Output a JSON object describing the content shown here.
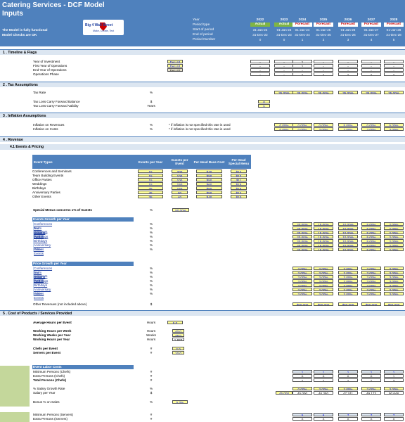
{
  "header": {
    "title": "Catering Services - DCF Model",
    "subtitle": "Inputs",
    "note1": "The Model is fully functional",
    "note2": "Model Checks are OK",
    "logo_text": "Big 4 Wall Street",
    "logo_sub": "Make, Create, Test",
    "period_labels": [
      "Year",
      "Period type",
      "Start of period",
      "End of period",
      "Period Number"
    ],
    "years": [
      "2022",
      "2023",
      "2024",
      "2025",
      "2026",
      "2027",
      "2028"
    ],
    "types": [
      "Actual",
      "Actual",
      "Forecast",
      "Forecast",
      "Forecast",
      "Forecast",
      "Forecast"
    ],
    "starts": [
      "31-Jan-22",
      "01-Jan-23",
      "01-Jan-24",
      "01-Jan-25",
      "01-Jan-26",
      "01-Jan-27",
      "01-Jan-28"
    ],
    "ends": [
      "31-Dec-22",
      "31-Dec-23",
      "31-Dec-24",
      "31-Dec-25",
      "31-Dec-26",
      "31-Dec-27",
      "31-Dec-28"
    ],
    "nums": [
      "0",
      "0",
      "1",
      "2",
      "3",
      "4",
      "5"
    ]
  },
  "sections": {
    "s1": "1 . Timeline & Flags",
    "s2": "2 . Tax Assumptions",
    "s3": "3 . Inflation Assumptions",
    "s4": "4 . Revenue",
    "s41": "4.1   Events & Pricing",
    "s5": "5 . Cost of Products / Services Provided"
  },
  "timeline": {
    "labels": [
      "Year of Investment",
      "First Year of Operations",
      "End Year of Operations",
      "Operations Phase"
    ],
    "values": [
      "Dec-24",
      "Dec-24",
      "Dec-37",
      ""
    ],
    "grid": [
      [
        "-",
        "-",
        "1",
        "-",
        "-",
        "-",
        "-"
      ],
      [
        "-",
        "-",
        "1",
        "-",
        "-",
        "-",
        "-"
      ],
      [
        "-",
        "-",
        "-",
        "-",
        "-",
        "-",
        "-"
      ],
      [
        "-",
        "-",
        "1",
        "1",
        "1",
        "1",
        "1"
      ]
    ]
  },
  "tax": {
    "rate_label": "Tax Rate",
    "rate_unit": "%",
    "rates": [
      "35.00%",
      "35.00%",
      "35.00%",
      "35.00%",
      "35.00%",
      "35.00%"
    ],
    "loss_label": "Tax Loss Carry Forward Balance",
    "loss_unit": "$",
    "loss_value": "0",
    "valid_label": "Tax Loss Carry Forward Validity",
    "valid_unit": "Years",
    "valid_value": "5"
  },
  "inflation": {
    "rev_label": "Inflation on Revenues",
    "cost_label": "Inflation on Costs",
    "unit": "%",
    "note": "* if inflation is not specified this rate is used",
    "rev": [
      "0.00%",
      "0.00%",
      "0.00%",
      "5.00%",
      "0.00%",
      "5.00%"
    ],
    "cost": [
      "0.00%",
      "0.00%",
      "3.00%",
      "3.00%",
      "3.00%",
      "3.00%"
    ]
  },
  "events": {
    "headers": [
      "Event Types",
      "Events per Year",
      "Guests per Event",
      "Per Head Base Cost",
      "Per Head Special Menu"
    ],
    "rows": [
      [
        "Conferences and Seminars",
        "15",
        "200",
        "$40",
        "$12"
      ],
      [
        "Team Building Events",
        "15",
        "100",
        "$50",
        "$13"
      ],
      [
        "Office Parties",
        "15",
        "100",
        "$50",
        "$11"
      ],
      [
        "Weddings",
        "15",
        "150",
        "$60",
        "$15"
      ],
      [
        "Birthdays",
        "25",
        "150",
        "$50",
        "$16"
      ],
      [
        "Anniversary Parties",
        "45",
        "60",
        "$50",
        "$12"
      ],
      [
        "Other Events",
        "35",
        "40",
        "$40",
        "$10"
      ]
    ],
    "special_label": "Special Menus concerns x% of Guests",
    "special_unit": "%",
    "special_value": "50.00%"
  },
  "growth": {
    "title": "Events Growth per Year",
    "unit": "%",
    "rows": [
      [
        "20.00%",
        "15.00%",
        "10.00%",
        "5.00%",
        "2.00%"
      ],
      [
        "20.00%",
        "15.00%",
        "10.00%",
        "5.00%",
        "2.00%"
      ],
      [
        "20.00%",
        "15.00%",
        "10.00%",
        "5.00%",
        "2.00%"
      ],
      [
        "20.00%",
        "15.00%",
        "10.00%",
        "5.00%",
        "2.00%"
      ],
      [
        "20.00%",
        "15.00%",
        "10.00%",
        "5.00%",
        "2.00%"
      ],
      [
        "20.00%",
        "15.00%",
        "10.00%",
        "5.00%",
        "2.00%"
      ],
      [
        "20.00%",
        "15.00%",
        "10.00%",
        "5.00%",
        "2.00%"
      ]
    ]
  },
  "price": {
    "title": "Price Growth per Year",
    "unit": "%",
    "rows": [
      [
        "3.00%",
        "3.00%",
        "3.00%",
        "3.00%",
        "3.00%"
      ],
      [
        "3.00%",
        "3.00%",
        "3.00%",
        "3.00%",
        "3.00%"
      ],
      [
        "3.00%",
        "3.00%",
        "3.00%",
        "3.00%",
        "3.00%"
      ],
      [
        "3.00%",
        "3.00%",
        "3.00%",
        "3.00%",
        "3.00%"
      ],
      [
        "3.00%",
        "3.00%",
        "3.00%",
        "3.00%",
        "3.00%"
      ],
      [
        "3.00%",
        "3.00%",
        "3.00%",
        "3.00%",
        "3.00%"
      ],
      [
        "3.00%",
        "3.00%",
        "3.00%",
        "3.00%",
        "3.00%"
      ]
    ]
  },
  "other_rev": {
    "label": "Other Revenues (not included above)",
    "unit": "$",
    "values": [
      "$50,000",
      "$50,000",
      "$50,000",
      "$50,000",
      "$50,000"
    ]
  },
  "cost": {
    "avg_label": "Average Hours per Event",
    "avg_unit": "Hours",
    "avg": "5.0",
    "wh_label": "Working Hours per Week",
    "wh_unit": "Hours",
    "wh": "40.0",
    "ww_label": "Working Weeks per Year",
    "ww_unit": "Weeks",
    "ww": "48.0",
    "hy_label": "Working Hours per Year",
    "hy_unit": "Hours",
    "hy": "1,920",
    "chef_label": "Chefs per Event",
    "chef_unit": "#",
    "chef": "2.0",
    "serv_label": "Servers per Event",
    "serv_unit": "#",
    "serv": "10.0",
    "labor_title": "Event Labor Costs",
    "min_chefs_label": "Minimum Persons (Chefs)",
    "extra_chefs_label": "Extra Persons (Chefs)",
    "total_chefs_label": "Total Persons (Chefs)",
    "min_chefs": [
      "1",
      "1",
      "1",
      "1",
      "1"
    ],
    "extra_chefs": [
      "0",
      "0",
      "0",
      "0",
      "1"
    ],
    "total_chefs": [
      "1",
      "1",
      "1",
      "1",
      "2"
    ],
    "sal_growth_label": "% Salary Growth Rate",
    "sal_growth": [
      "0.00%",
      "3.00%",
      "3.00%",
      "3.00%",
      "3.00%"
    ],
    "salary_label": "Salary per Year",
    "salary_base": "45,000",
    "salary": [
      "45,000",
      "46,350",
      "47,741",
      "49,173",
      "50,648"
    ],
    "bonus_label": "Bonus % on Sales",
    "bonus": "5.0%",
    "min_serv_label": "Minimum Persons (Servers)",
    "extra_serv_label": "Extra Persons (Servers)",
    "min_serv": [
      "5",
      "6",
      "7",
      "7",
      "7"
    ],
    "extra_serv": [
      "0",
      "0",
      "0",
      "0",
      "0"
    ]
  }
}
